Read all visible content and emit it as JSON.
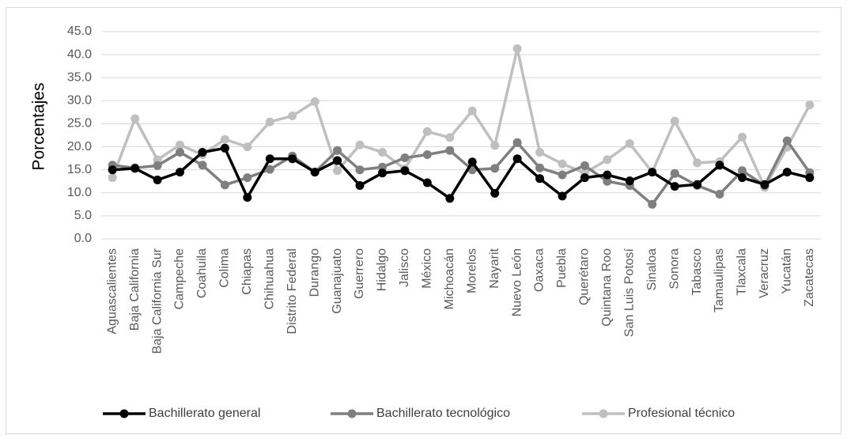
{
  "chart_data": {
    "type": "line",
    "title": "",
    "xlabel": "",
    "ylabel": "Porcentajes",
    "ylim": [
      0,
      45
    ],
    "yticks": [
      "0.0",
      "5.0",
      "10.0",
      "15.0",
      "20.0",
      "25.0",
      "30.0",
      "35.0",
      "40.0",
      "45.0"
    ],
    "grid": true,
    "legend_position": "bottom",
    "categories": [
      "Aguascalientes",
      "Baja California",
      "Baja California Sur",
      "Campeche",
      "Coahuila",
      "Colima",
      "Chiapas",
      "Chihuahua",
      "Distrito Federal",
      "Durango",
      "Guanajuato",
      "Guerrero",
      "Hidalgo",
      "Jalisco",
      "México",
      "Michoacán",
      "Morelos",
      "Nayarit",
      "Nuevo León",
      "Oaxaca",
      "Puebla",
      "Querétaro",
      "Quintana Roo",
      "San Luis Potosí",
      "Sinaloa",
      "Sonora",
      "Tabasco",
      "Tamaulipas",
      "Tlaxcala",
      "Veracruz",
      "Yucatán",
      "Zacatecas"
    ],
    "series": [
      {
        "name": "Bachillerato general",
        "color": "#000000",
        "values": [
          15.0,
          15.3,
          12.8,
          14.5,
          18.8,
          19.7,
          9.0,
          17.4,
          17.4,
          14.5,
          17.0,
          11.6,
          14.3,
          14.8,
          12.2,
          8.8,
          16.7,
          9.9,
          17.4,
          13.1,
          9.3,
          13.3,
          13.9,
          12.6,
          14.5,
          11.4,
          11.8,
          16.0,
          13.3,
          11.8,
          14.5,
          13.3
        ]
      },
      {
        "name": "Bachillerato tecnológico",
        "color": "#7f7f7f",
        "values": [
          16.0,
          15.4,
          15.9,
          18.8,
          16.0,
          11.7,
          13.3,
          15.1,
          18.0,
          14.5,
          19.2,
          15.0,
          15.6,
          17.6,
          18.3,
          19.2,
          15.0,
          15.3,
          20.9,
          15.4,
          13.9,
          15.9,
          12.5,
          11.6,
          7.5,
          14.2,
          11.6,
          9.7,
          14.8,
          11.6,
          21.3,
          14.4
        ]
      },
      {
        "name": "Profesional técnico",
        "color": "#bfbfbf",
        "values": [
          13.3,
          26.1,
          17.2,
          20.4,
          18.3,
          21.6,
          20.0,
          25.4,
          26.7,
          29.8,
          14.8,
          20.4,
          18.8,
          15.2,
          23.3,
          22.0,
          27.8,
          20.3,
          41.3,
          18.8,
          16.3,
          14.3,
          17.2,
          20.7,
          14.5,
          25.6,
          16.5,
          16.8,
          22.1,
          11.2,
          19.9,
          29.1
        ]
      }
    ]
  }
}
